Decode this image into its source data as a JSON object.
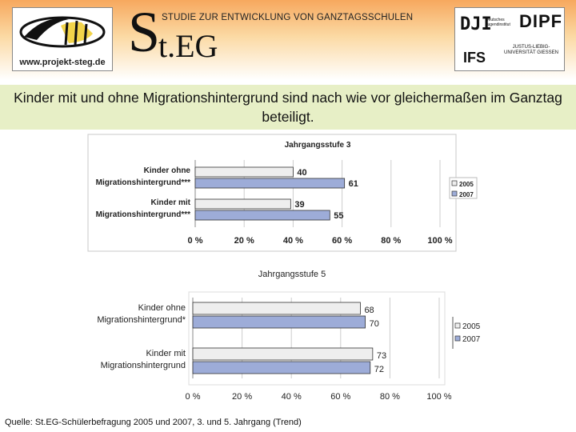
{
  "header": {
    "logo_left_url": "www.projekt-steg.de",
    "study_title": "STUDIE ZUR ENTWICKLUNG VON GANZTAGSSCHULEN",
    "brand_initial": "S",
    "brand_rest": "t.EG",
    "logo_right": {
      "dji": "DJI",
      "dji_sub": "Deutsches Jugendinstitut",
      "dipf": "DIPF",
      "ifs": "IFS",
      "jlu": "JUSTUS-LIEBIG-UNIVERSITÄT GIESSEN"
    }
  },
  "headline": "Kinder mit und ohne Migrationshintergrund sind nach wie vor gleichermaßen im Ganztag beteiligt.",
  "source": "Quelle: St.EG-Schülerbefragung 2005 und 2007, 3. und 5. Jahrgang (Trend)",
  "colors": {
    "s2005": "#eeeeee",
    "s2007": "#9dacd8",
    "stroke": "#333333",
    "grid": "#cccccc"
  },
  "chart_data": [
    {
      "type": "bar",
      "orientation": "horizontal",
      "title": "Jahrgangsstufe 3",
      "categories": [
        [
          "Kinder ohne",
          "Migrationshintergrund***"
        ],
        [
          "Kinder mit",
          "Migrationshintergrund***"
        ]
      ],
      "series": [
        {
          "name": "2005",
          "values": [
            40,
            39
          ]
        },
        {
          "name": "2007",
          "values": [
            61,
            55
          ]
        }
      ],
      "xlim": [
        0,
        100
      ],
      "xticks": [
        "0 %",
        "20 %",
        "40 %",
        "60 %",
        "80 %",
        "100 %"
      ],
      "grid": true,
      "legend": "right"
    },
    {
      "type": "bar",
      "orientation": "horizontal",
      "title": "Jahrgangsstufe 5",
      "categories": [
        [
          "Kinder ohne",
          "Migrationshintergrund*"
        ],
        [
          "Kinder mit",
          "Migrationshintergrund"
        ]
      ],
      "series": [
        {
          "name": "2005",
          "values": [
            68,
            73
          ]
        },
        {
          "name": "2007",
          "values": [
            70,
            72
          ]
        }
      ],
      "xlim": [
        0,
        100
      ],
      "xticks": [
        "0 %",
        "20 %",
        "40 %",
        "60 %",
        "80 %",
        "100 %"
      ],
      "grid": true,
      "legend": "right"
    }
  ]
}
